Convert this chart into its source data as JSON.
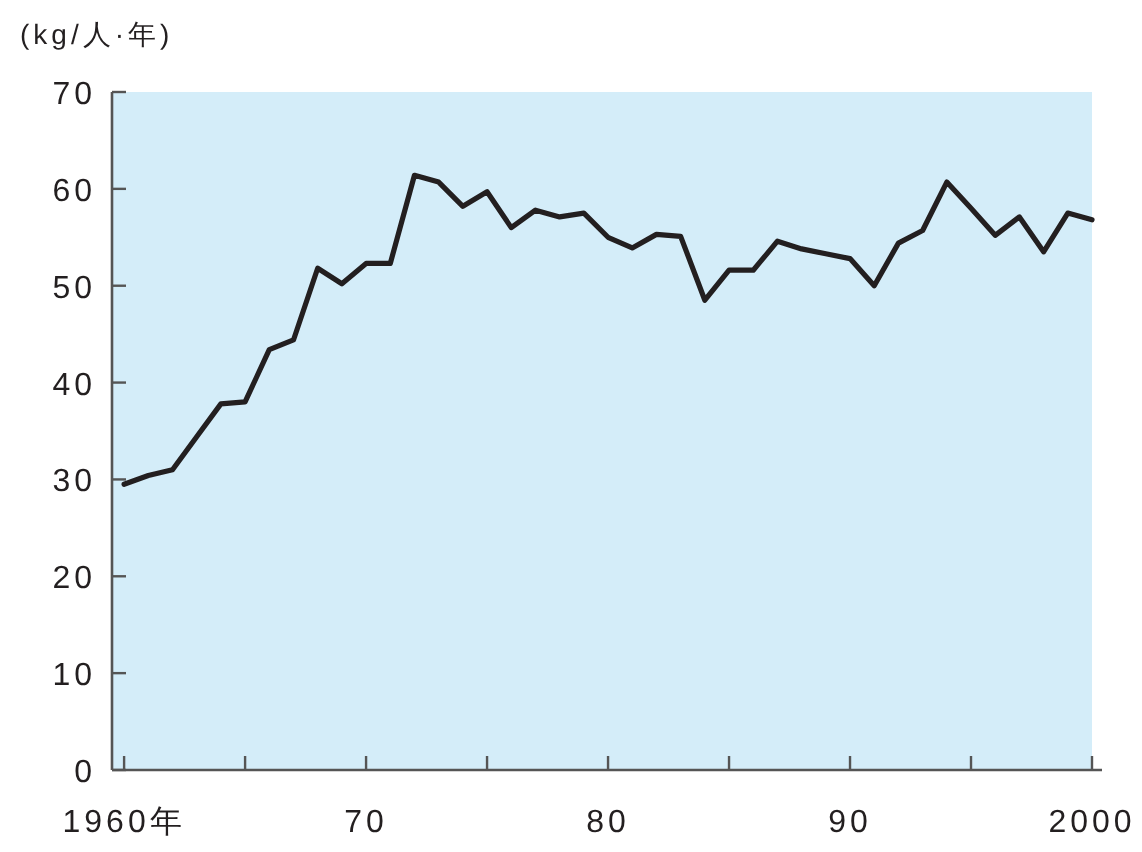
{
  "chart_data": {
    "type": "line",
    "ylabel": "(kg/人·年)",
    "x": [
      1960,
      1961,
      1962,
      1963,
      1964,
      1965,
      1966,
      1967,
      1968,
      1969,
      1970,
      1971,
      1972,
      1973,
      1974,
      1975,
      1976,
      1977,
      1978,
      1979,
      1980,
      1981,
      1982,
      1983,
      1984,
      1985,
      1986,
      1987,
      1988,
      1989,
      1990,
      1991,
      1992,
      1993,
      1994,
      1995,
      1996,
      1997,
      1998,
      1999,
      2000
    ],
    "values": [
      29.5,
      30.4,
      31.0,
      34.4,
      37.8,
      38.0,
      43.4,
      44.4,
      51.8,
      50.2,
      52.3,
      52.3,
      61.4,
      60.7,
      58.2,
      59.7,
      56.0,
      57.8,
      57.1,
      57.5,
      55.0,
      53.9,
      55.3,
      55.1,
      48.5,
      51.6,
      51.6,
      54.6,
      53.8,
      53.3,
      52.8,
      50.0,
      54.4,
      55.7,
      60.7,
      58.0,
      55.2,
      57.1,
      53.5,
      57.5,
      56.8
    ],
    "color": "#231f20",
    "xlim": [
      1959.5,
      2000
    ],
    "ylim": [
      0,
      70
    ],
    "xticks": [
      {
        "value": 1960,
        "label": "1960年"
      },
      {
        "value": 1965,
        "label": null
      },
      {
        "value": 1970,
        "label": "70"
      },
      {
        "value": 1975,
        "label": null
      },
      {
        "value": 1980,
        "label": "80"
      },
      {
        "value": 1985,
        "label": null
      },
      {
        "value": 1990,
        "label": "90"
      },
      {
        "value": 1995,
        "label": null
      },
      {
        "value": 2000,
        "label": "2000"
      }
    ],
    "yticks": [
      0,
      10,
      20,
      30,
      40,
      50,
      60,
      70
    ]
  }
}
